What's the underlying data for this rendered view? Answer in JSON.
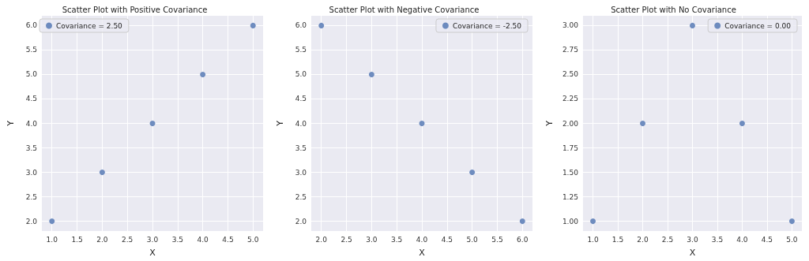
{
  "chart_data": [
    {
      "type": "scatter",
      "title": "Scatter Plot with Positive Covariance",
      "xlabel": "X",
      "ylabel": "Y",
      "x": [
        1,
        2,
        3,
        4,
        5
      ],
      "series": [
        {
          "name": "Covariance = 2.50",
          "color": "#4c72b0",
          "values": [
            2,
            3,
            4,
            5,
            6
          ]
        }
      ],
      "xlim": [
        0.8,
        5.2
      ],
      "ylim": [
        1.8,
        6.2
      ],
      "xticks": [
        {
          "value": 1,
          "label": "1.0"
        },
        1.5,
        {
          "value": 2,
          "label": "2.0"
        },
        2.5,
        {
          "value": 3,
          "label": "3.0"
        },
        3.5,
        {
          "value": 4,
          "label": "4.0"
        },
        4.5,
        {
          "value": 5,
          "label": "5.0"
        }
      ],
      "yticks": [
        {
          "value": 2,
          "label": "2.0"
        },
        2.5,
        {
          "value": 3,
          "label": "3.0"
        },
        3.5,
        {
          "value": 4,
          "label": "4.0"
        },
        4.5,
        {
          "value": 5,
          "label": "5.0"
        },
        5.5,
        {
          "value": 6,
          "label": "6.0"
        }
      ],
      "grid": true,
      "legend": "top left",
      "marker": "circle"
    },
    {
      "type": "scatter",
      "title": "Scatter Plot with Negative Covariance",
      "xlabel": "X",
      "ylabel": "Y",
      "x": [
        2,
        3,
        4,
        5,
        6
      ],
      "series": [
        {
          "name": "Covariance = -2.50",
          "color": "#4c72b0",
          "values": [
            6,
            5,
            4,
            3,
            2
          ]
        }
      ],
      "xlim": [
        1.8,
        6.2
      ],
      "ylim": [
        1.8,
        6.2
      ],
      "xticks": [
        {
          "value": 2,
          "label": "2.0"
        },
        2.5,
        {
          "value": 3,
          "label": "3.0"
        },
        3.5,
        {
          "value": 4,
          "label": "4.0"
        },
        4.5,
        {
          "value": 5,
          "label": "5.0"
        },
        5.5,
        {
          "value": 6,
          "label": "6.0"
        }
      ],
      "yticks": [
        {
          "value": 2,
          "label": "2.0"
        },
        2.5,
        {
          "value": 3,
          "label": "3.0"
        },
        3.5,
        {
          "value": 4,
          "label": "4.0"
        },
        4.5,
        {
          "value": 5,
          "label": "5.0"
        },
        5.5,
        {
          "value": 6,
          "label": "6.0"
        }
      ],
      "grid": true,
      "legend": "top right",
      "marker": "circle"
    },
    {
      "type": "scatter",
      "title": "Scatter Plot with No Covariance",
      "xlabel": "X",
      "ylabel": "Y",
      "x": [
        1,
        2,
        3,
        4,
        5
      ],
      "series": [
        {
          "name": "Covariance = 0.00",
          "color": "#4c72b0",
          "values": [
            1,
            2,
            3,
            2,
            1
          ]
        }
      ],
      "xlim": [
        0.8,
        5.2
      ],
      "ylim": [
        0.9,
        3.1
      ],
      "xticks": [
        {
          "value": 1,
          "label": "1.0"
        },
        1.5,
        {
          "value": 2,
          "label": "2.0"
        },
        2.5,
        {
          "value": 3,
          "label": "3.0"
        },
        3.5,
        {
          "value": 4,
          "label": "4.0"
        },
        4.5,
        {
          "value": 5,
          "label": "5.0"
        }
      ],
      "yticks": [
        {
          "value": 1,
          "label": "1.00"
        },
        1.25,
        {
          "value": 1.5,
          "label": "1.50"
        },
        1.75,
        {
          "value": 2,
          "label": "2.00"
        },
        2.25,
        {
          "value": 2.5,
          "label": "2.50"
        },
        2.75,
        {
          "value": 3,
          "label": "3.00"
        }
      ],
      "grid": true,
      "legend": "top right",
      "marker": "circle"
    }
  ]
}
